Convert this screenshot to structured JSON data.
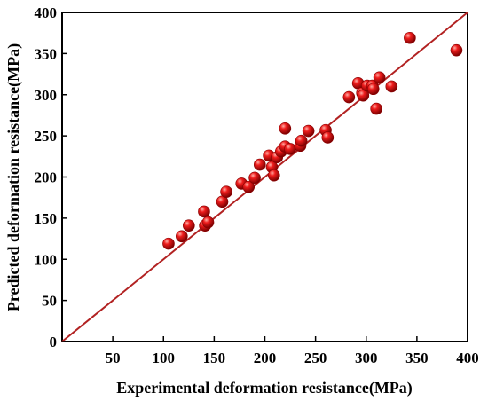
{
  "chart_data": {
    "type": "scatter",
    "title": "",
    "xlabel": "Experimental deformation resistance(MPa)",
    "ylabel": "Predicted deformation resistance(MPa)",
    "xlim": [
      0,
      400
    ],
    "ylim": [
      0,
      400
    ],
    "x_ticks": [
      50,
      100,
      150,
      200,
      250,
      300,
      350,
      400
    ],
    "y_ticks": [
      0,
      50,
      100,
      150,
      200,
      250,
      300,
      350,
      400
    ],
    "grid": false,
    "legend": "none",
    "point_color": "#e00000",
    "reference_line": {
      "from": [
        0,
        0
      ],
      "to": [
        400,
        400
      ],
      "color": "#b22222"
    },
    "points": [
      {
        "x": 105,
        "y": 119
      },
      {
        "x": 118,
        "y": 128
      },
      {
        "x": 125,
        "y": 141
      },
      {
        "x": 140,
        "y": 158
      },
      {
        "x": 141,
        "y": 141
      },
      {
        "x": 144,
        "y": 145
      },
      {
        "x": 158,
        "y": 170
      },
      {
        "x": 162,
        "y": 182
      },
      {
        "x": 177,
        "y": 192
      },
      {
        "x": 184,
        "y": 188
      },
      {
        "x": 190,
        "y": 199
      },
      {
        "x": 195,
        "y": 215
      },
      {
        "x": 204,
        "y": 226
      },
      {
        "x": 207,
        "y": 212
      },
      {
        "x": 209,
        "y": 202
      },
      {
        "x": 212,
        "y": 224
      },
      {
        "x": 216,
        "y": 231
      },
      {
        "x": 220,
        "y": 237
      },
      {
        "x": 220,
        "y": 259
      },
      {
        "x": 225,
        "y": 234
      },
      {
        "x": 235,
        "y": 238
      },
      {
        "x": 236,
        "y": 244
      },
      {
        "x": 243,
        "y": 256
      },
      {
        "x": 260,
        "y": 257
      },
      {
        "x": 262,
        "y": 248
      },
      {
        "x": 283,
        "y": 297
      },
      {
        "x": 292,
        "y": 314
      },
      {
        "x": 296,
        "y": 302
      },
      {
        "x": 297,
        "y": 299
      },
      {
        "x": 301,
        "y": 311
      },
      {
        "x": 306,
        "y": 311
      },
      {
        "x": 307,
        "y": 307
      },
      {
        "x": 310,
        "y": 283
      },
      {
        "x": 313,
        "y": 321
      },
      {
        "x": 325,
        "y": 310
      },
      {
        "x": 343,
        "y": 369
      },
      {
        "x": 389,
        "y": 354
      }
    ]
  }
}
